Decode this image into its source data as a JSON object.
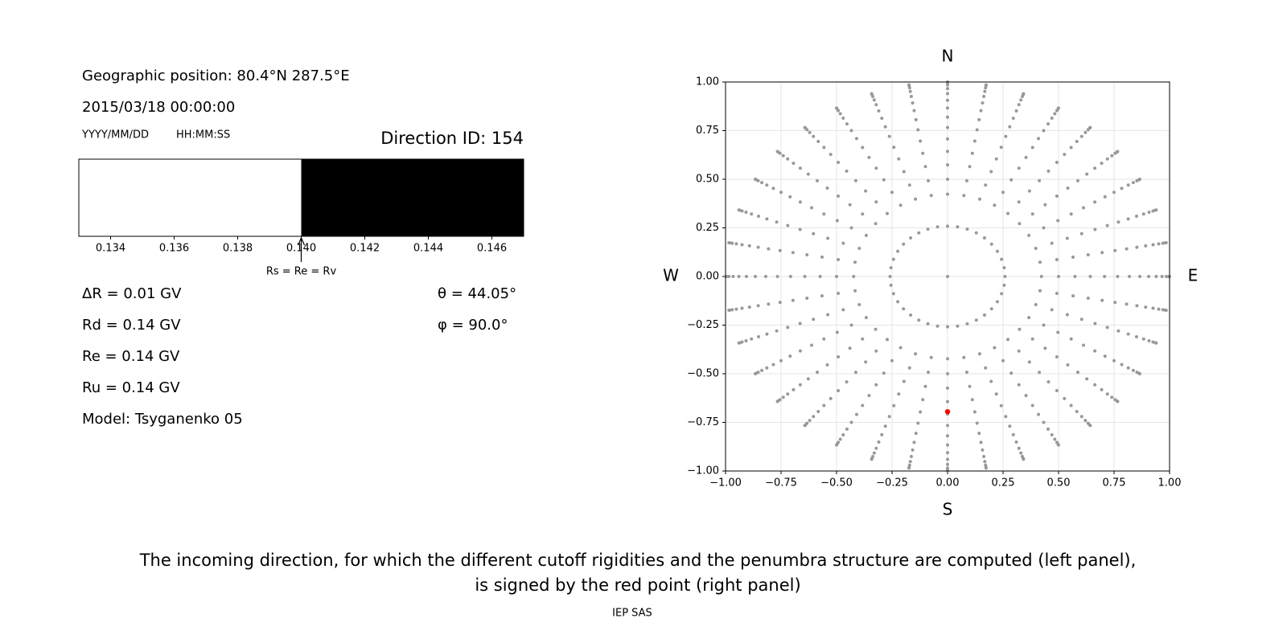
{
  "header": {
    "position": "Geographic position: 80.4°N 287.5°E",
    "datetime": "2015/03/18 00:00:00",
    "date_format": "YYYY/MM/DD",
    "time_format": "HH:MM:SS",
    "direction_id": "Direction ID: 154"
  },
  "parameters": {
    "left": [
      "ΔR = 0.01 GV",
      "Rd = 0.14 GV",
      "Re = 0.14 GV",
      "Ru = 0.14 GV",
      "Model: Tsyganenko 05"
    ],
    "right": [
      "θ = 44.05°",
      "φ = 90.0°"
    ]
  },
  "chart_data": [
    {
      "type": "penumbra",
      "xlim": [
        0.133,
        0.147
      ],
      "xticks": [
        0.134,
        0.136,
        0.138,
        {
          "value": 0.14,
          "label": "0.140"
        },
        0.142,
        0.144,
        0.146
      ],
      "bands": [
        {
          "from": 0.133,
          "to": 0.14,
          "color": "#ffffff"
        },
        {
          "from": 0.14,
          "to": 0.147,
          "color": "#000000"
        }
      ],
      "annotation": {
        "text": "Rs = Re = Rv",
        "x": 0.14
      }
    },
    {
      "type": "sky-map",
      "xlim": [
        -1,
        1
      ],
      "ylim": [
        -1,
        1
      ],
      "xticks": [
        {
          "value": -1,
          "label": "−1.00"
        },
        {
          "value": -0.75,
          "label": "−0.75"
        },
        {
          "value": -0.5,
          "label": "−0.50"
        },
        {
          "value": -0.25,
          "label": "−0.25"
        },
        {
          "value": 0,
          "label": "0.00"
        },
        {
          "value": 0.25,
          "label": "0.25"
        },
        {
          "value": 0.5,
          "label": "0.50"
        },
        {
          "value": 0.75,
          "label": "0.75"
        },
        {
          "value": 1,
          "label": "1.00"
        }
      ],
      "yticks": [
        {
          "value": -1,
          "label": "−1.00"
        },
        {
          "value": -0.75,
          "label": "−0.75"
        },
        {
          "value": -0.5,
          "label": "−0.50"
        },
        {
          "value": -0.25,
          "label": "−0.25"
        },
        {
          "value": 0,
          "label": "0.00"
        },
        {
          "value": 0.25,
          "label": "0.25"
        },
        {
          "value": 0.5,
          "label": "0.50"
        },
        {
          "value": 0.75,
          "label": "0.75"
        },
        {
          "value": 1,
          "label": "1.00"
        }
      ],
      "grid": true,
      "radii": [
        0.259,
        0.423,
        0.5,
        0.574,
        0.643,
        0.707,
        0.766,
        0.819,
        0.866,
        0.906,
        0.94,
        0.966,
        0.985,
        0.996,
        1
      ],
      "azimuths": [
        0,
        10,
        20,
        30,
        40,
        50,
        60,
        70,
        80,
        90,
        100,
        110,
        120,
        130,
        140,
        150,
        160,
        170,
        180,
        190,
        200,
        210,
        220,
        230,
        240,
        250,
        260,
        270,
        280,
        290,
        300,
        310,
        320,
        330,
        340,
        350
      ],
      "color": "#999999",
      "points": {
        "x": [
          0
        ],
        "y": [
          0
        ],
        "color": "#999999"
      },
      "selected": {
        "x": 0,
        "y": -0.695,
        "color": "#ff0000"
      },
      "compass": {
        "north": "N",
        "south": "S",
        "west": "W",
        "east": "E"
      }
    }
  ],
  "caption": {
    "lines": [
      "The incoming direction, for which the different cutoff rigidities and the penumbra structure are computed (left panel),",
      "is signed by the red point (right panel)"
    ],
    "credit": "IEP SAS"
  }
}
